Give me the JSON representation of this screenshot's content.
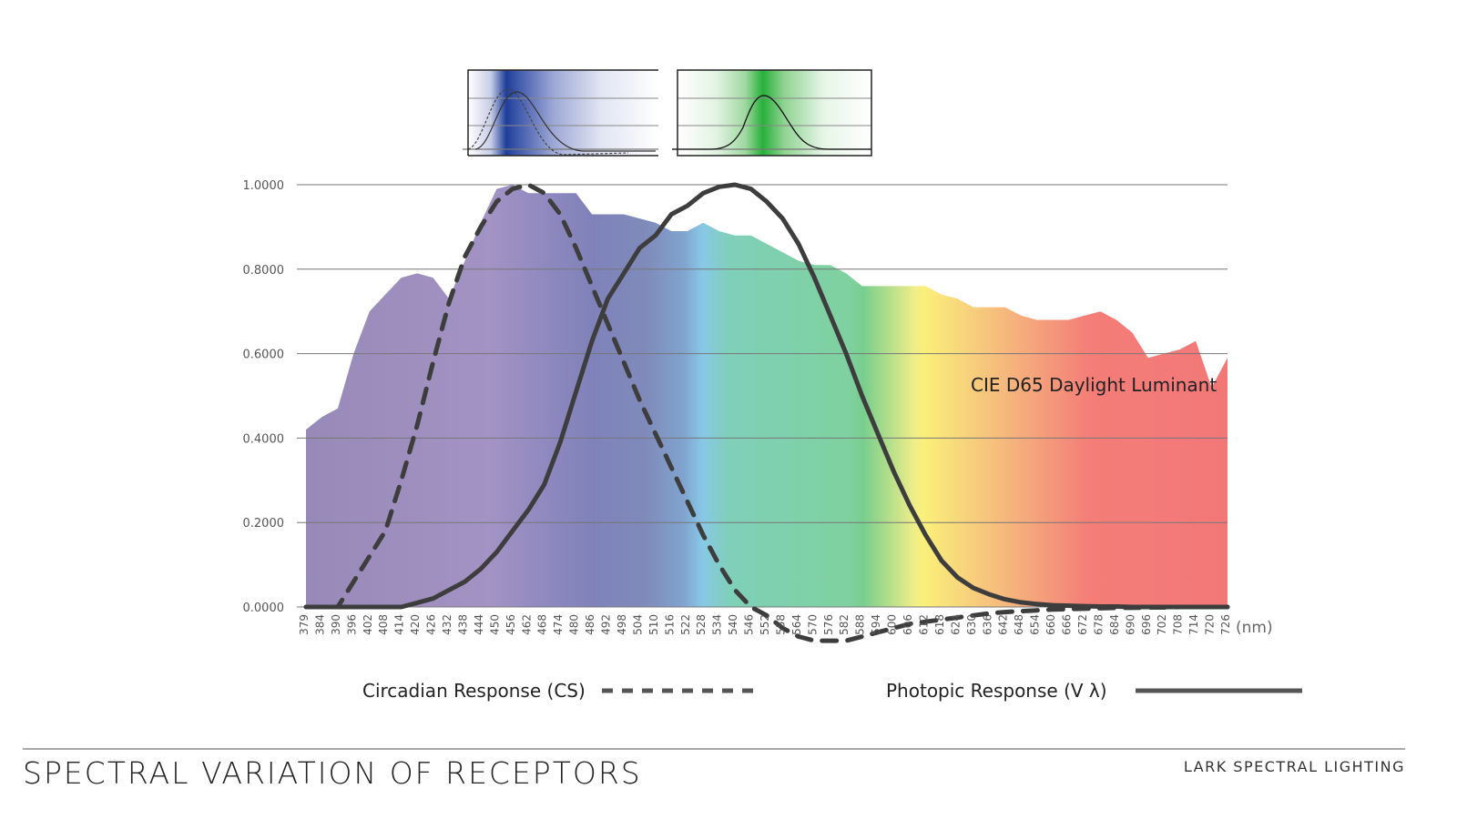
{
  "footer": {
    "title": "SPECTRAL VARIATION OF RECEPTORS",
    "brand": "LARK SPECTRAL LIGHTING"
  },
  "chart_data": {
    "type": "area",
    "title": "Spectral Variation of Receptors",
    "xlabel": "(nm)",
    "ylabel": "",
    "ylim": [
      0,
      1
    ],
    "grid": true,
    "yticks": [
      "0.0000",
      "0.2000",
      "0.4000",
      "0.6000",
      "0.8000",
      "1.0000"
    ],
    "x": [
      379,
      384,
      390,
      396,
      402,
      408,
      414,
      420,
      426,
      432,
      438,
      444,
      450,
      456,
      462,
      468,
      474,
      480,
      486,
      492,
      498,
      504,
      510,
      516,
      522,
      528,
      534,
      540,
      546,
      552,
      558,
      564,
      570,
      576,
      582,
      588,
      594,
      600,
      606,
      612,
      618,
      624,
      630,
      636,
      642,
      648,
      654,
      660,
      666,
      672,
      678,
      684,
      690,
      696,
      702,
      708,
      714,
      720,
      726
    ],
    "annotation": "CIE D65 Daylight Luminant",
    "series": [
      {
        "name": "CIE D65 Daylight Luminant",
        "style": "spectrum-fill",
        "values": [
          0.42,
          0.45,
          0.47,
          0.6,
          0.7,
          0.74,
          0.78,
          0.79,
          0.78,
          0.73,
          0.82,
          0.91,
          0.99,
          1.0,
          0.98,
          0.98,
          0.98,
          0.98,
          0.93,
          0.93,
          0.93,
          0.92,
          0.91,
          0.89,
          0.89,
          0.91,
          0.89,
          0.88,
          0.88,
          0.86,
          0.84,
          0.82,
          0.81,
          0.81,
          0.79,
          0.76,
          0.76,
          0.76,
          0.76,
          0.76,
          0.74,
          0.73,
          0.71,
          0.71,
          0.71,
          0.69,
          0.68,
          0.68,
          0.68,
          0.69,
          0.7,
          0.68,
          0.65,
          0.59,
          0.6,
          0.61,
          0.63,
          0.52,
          0.59
        ]
      },
      {
        "name": "Circadian Response (CS)",
        "style": "dashed",
        "values": [
          0.0,
          0.0,
          0.0,
          0.06,
          0.12,
          0.18,
          0.3,
          0.43,
          0.58,
          0.72,
          0.83,
          0.9,
          0.96,
          0.99,
          1.0,
          0.98,
          0.93,
          0.85,
          0.76,
          0.67,
          0.58,
          0.49,
          0.41,
          0.33,
          0.25,
          0.17,
          0.1,
          0.04,
          0.0,
          -0.02,
          -0.05,
          -0.07,
          -0.08,
          -0.08,
          -0.08,
          -0.07,
          -0.06,
          -0.05,
          -0.04,
          -0.035,
          -0.03,
          -0.025,
          -0.02,
          -0.015,
          -0.012,
          -0.01,
          -0.008,
          -0.006,
          -0.005,
          -0.004,
          -0.003,
          -0.002,
          -0.002,
          -0.001,
          -0.001,
          0.0,
          0.0,
          0.0,
          0.0
        ]
      },
      {
        "name": "Photopic Response (V λ)",
        "style": "solid",
        "values": [
          0.0,
          0.0,
          0.0,
          0.0,
          0.0,
          0.0,
          0.0,
          0.01,
          0.02,
          0.04,
          0.06,
          0.09,
          0.13,
          0.18,
          0.23,
          0.29,
          0.39,
          0.51,
          0.63,
          0.73,
          0.79,
          0.85,
          0.88,
          0.93,
          0.95,
          0.98,
          0.995,
          1.0,
          0.99,
          0.96,
          0.92,
          0.86,
          0.78,
          0.69,
          0.6,
          0.5,
          0.41,
          0.32,
          0.24,
          0.17,
          0.11,
          0.07,
          0.045,
          0.03,
          0.018,
          0.011,
          0.007,
          0.004,
          0.003,
          0.002,
          0.001,
          0.001,
          0.0,
          0.0,
          0.0,
          0.0,
          0.0,
          0.0,
          0.0
        ]
      }
    ],
    "legend": {
      "placement": "bottom",
      "entries": [
        {
          "label": "Circadian Response (CS)",
          "style": "dashed"
        },
        {
          "label": "Photopic Response (V λ)",
          "style": "solid"
        }
      ]
    },
    "insets": [
      {
        "name": "blue-receptor-inset",
        "band": "blue",
        "curves": [
          "solid",
          "dashed"
        ]
      },
      {
        "name": "green-receptor-inset",
        "band": "green",
        "curves": [
          "solid"
        ]
      }
    ],
    "colors": {
      "line": "#3d3d3d",
      "grid": "#777777"
    }
  }
}
